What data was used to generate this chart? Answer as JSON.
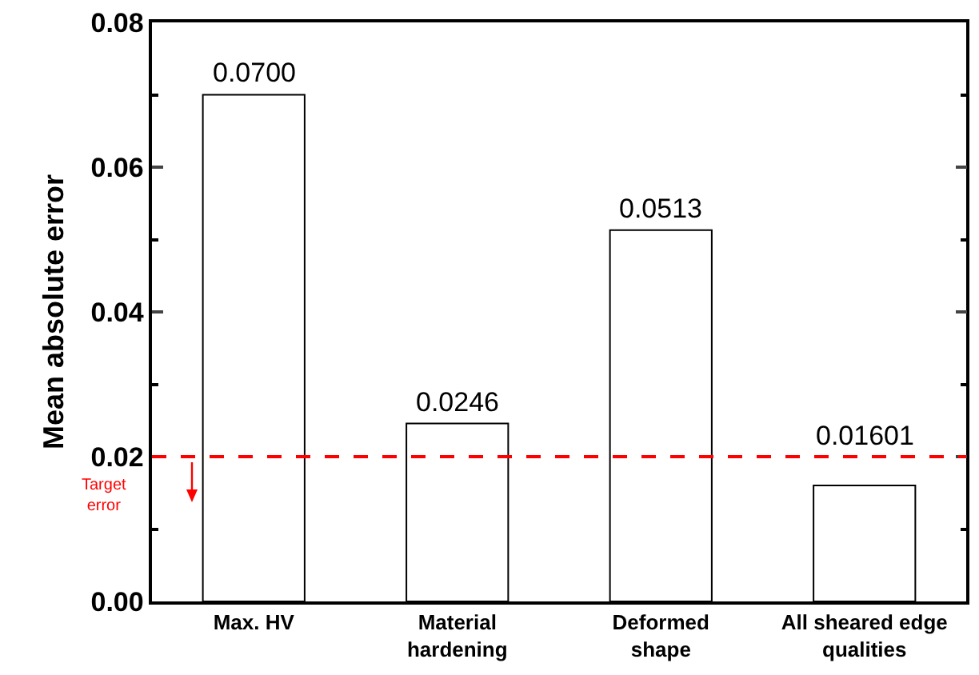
{
  "chart_data": {
    "type": "bar",
    "ylabel": "Mean absolute error",
    "categories": [
      "Max. HV",
      "Material\nhardening",
      "Deformed\nshape",
      "All sheared edge\nqualities"
    ],
    "values": [
      0.07,
      0.0246,
      0.0513,
      0.01601
    ],
    "value_labels": [
      "0.0700",
      "0.0246",
      "0.0513",
      "0.01601"
    ],
    "color": "#ffffff",
    "ylim": [
      0,
      0.08
    ],
    "yticks": [
      {
        "value": 0,
        "label": "0.00"
      },
      {
        "value": 0.02,
        "label": "0.02"
      },
      {
        "value": 0.04,
        "label": "0.04"
      },
      {
        "value": 0.06,
        "label": "0.06"
      },
      {
        "value": 0.08,
        "label": "0.08"
      }
    ],
    "ref_lines": [
      {
        "axis": "y",
        "value": 0.02,
        "label": "Target\nerror",
        "color": "#ff0000",
        "line_style": "dashed"
      }
    ],
    "grid": false
  }
}
